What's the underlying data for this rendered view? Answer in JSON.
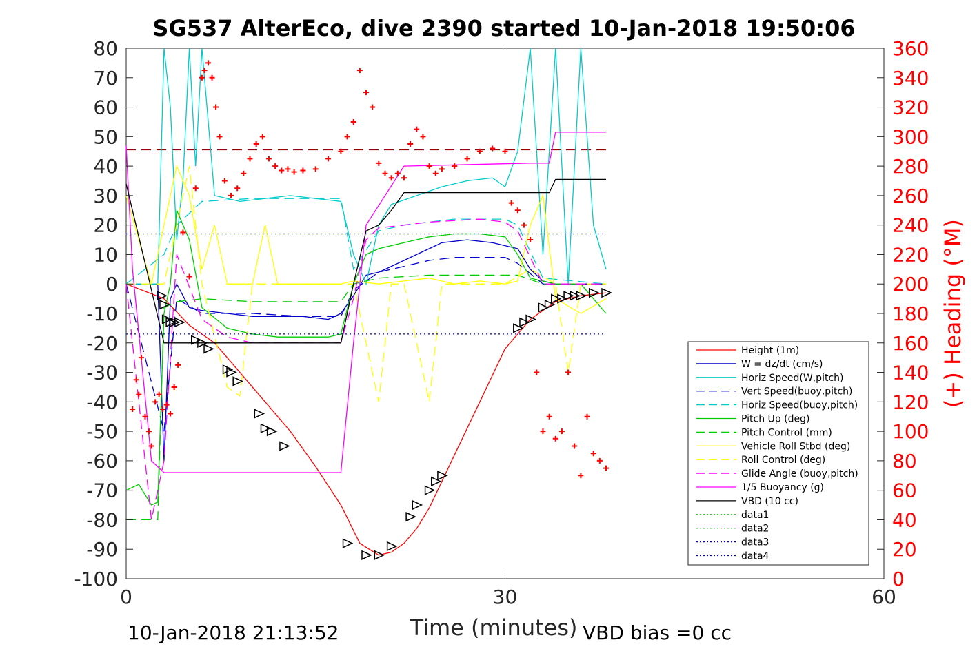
{
  "chart_data": {
    "type": "line",
    "title": "SG537 AlterEco, dive 2390 started 10-Jan-2018 19:50:06",
    "xlabel": "Time (minutes)",
    "ylabel": "",
    "ylabel_right": "(+) Heading (°M)",
    "xlim": [
      0,
      60
    ],
    "ylim": [
      -100,
      80
    ],
    "ylim_right": [
      0,
      360
    ],
    "xticks": [
      0,
      30,
      60
    ],
    "yticks": [
      -100,
      -90,
      -80,
      -70,
      -60,
      -50,
      -40,
      -30,
      -20,
      -10,
      0,
      10,
      20,
      30,
      40,
      50,
      60,
      70,
      80
    ],
    "yticks_right": [
      0,
      20,
      40,
      60,
      80,
      100,
      120,
      140,
      160,
      180,
      200,
      220,
      240,
      260,
      280,
      300,
      320,
      340,
      360
    ],
    "grid": "x-only",
    "legend_position": "lower-right",
    "footer_left": "10-Jan-2018 21:13:52",
    "footer_right": "VBD bias =0 cc",
    "series": [
      {
        "name": "Height (1m)",
        "color": "#ff0000",
        "style": "solid",
        "x": [
          0,
          3,
          5,
          7,
          9,
          11,
          13,
          15,
          17,
          18.5,
          20,
          21,
          22,
          23,
          24,
          25,
          26,
          28,
          30,
          32,
          34,
          36,
          38
        ],
        "y": [
          0,
          -5,
          -14,
          -20,
          -30,
          -40,
          -50,
          -62,
          -75,
          -88,
          -92,
          -91,
          -88,
          -83,
          -76,
          -67,
          -58,
          -40,
          -22,
          -12,
          -6,
          -4,
          -3
        ]
      },
      {
        "name": "W = dz/dt (cm/s)",
        "color": "#0000cc",
        "style": "solid",
        "x": [
          0,
          2.5,
          3,
          3.5,
          4,
          5,
          6,
          8,
          10,
          12,
          14,
          16,
          17,
          18,
          19,
          20,
          21,
          22,
          23,
          24,
          25,
          27,
          29,
          30,
          31,
          32,
          33,
          34,
          36,
          38
        ],
        "y": [
          0,
          0,
          -60,
          -5,
          0,
          -8,
          -9,
          -10,
          -11,
          -11,
          -11,
          -12,
          -10,
          -4,
          3,
          4,
          6,
          8,
          10,
          12,
          14,
          15,
          14,
          13,
          12,
          5,
          1,
          0,
          0,
          0
        ]
      },
      {
        "name": "Horiz Speed(W,pitch)",
        "color": "#00cccc",
        "style": "solid",
        "x": [
          0,
          2.5,
          3,
          3.5,
          4,
          4.5,
          5,
          5.5,
          6,
          7,
          9,
          11,
          13,
          15,
          17,
          18,
          19,
          20,
          21,
          23,
          25,
          27,
          29,
          30,
          31,
          32,
          33,
          34,
          35,
          36,
          37,
          38
        ],
        "y": [
          0,
          0,
          80,
          60,
          15,
          35,
          80,
          40,
          80,
          30,
          28,
          29,
          30,
          29,
          28,
          10,
          0,
          20,
          27,
          30,
          33,
          35,
          36,
          33,
          45,
          80,
          10,
          80,
          0,
          80,
          20,
          5
        ]
      },
      {
        "name": "Vert Speed(buoy,pitch)",
        "color": "#0000cc",
        "style": "dash",
        "x": [
          0,
          3,
          4,
          6,
          10,
          14,
          17,
          18,
          20,
          22,
          24,
          26,
          28,
          30,
          31,
          33,
          38
        ],
        "y": [
          0,
          -50,
          -5,
          -10,
          -10,
          -11,
          -11,
          -2,
          4,
          6,
          8,
          9,
          9,
          9,
          7,
          0,
          0
        ]
      },
      {
        "name": "Horiz Speed(buoy,pitch)",
        "color": "#00cccc",
        "style": "dash",
        "x": [
          0,
          3,
          4,
          6,
          10,
          14,
          17,
          18,
          20,
          22,
          24,
          26,
          28,
          30,
          31,
          33,
          38
        ],
        "y": [
          0,
          10,
          20,
          28,
          29,
          29,
          29,
          5,
          18,
          20,
          21,
          22,
          22,
          22,
          20,
          2,
          0
        ]
      },
      {
        "name": "Pitch Up (deg)",
        "color": "#00cc00",
        "style": "solid",
        "x": [
          0,
          1,
          2,
          2.5,
          3,
          3.5,
          4,
          5,
          6,
          8,
          10,
          12,
          14,
          16,
          17,
          18,
          19,
          20,
          22,
          24,
          26,
          28,
          30,
          31,
          32,
          34,
          36,
          38
        ],
        "y": [
          -70,
          -68,
          -75,
          -74,
          -10,
          0,
          25,
          15,
          -8,
          -15,
          -17,
          -18,
          -18,
          -18,
          -17,
          0,
          10,
          12,
          14,
          16,
          17,
          17,
          16,
          10,
          2,
          0,
          0,
          -10
        ]
      },
      {
        "name": "Pitch Control (mm)",
        "color": "#00cc00",
        "style": "dash",
        "x": [
          0,
          2.5,
          3,
          4,
          6,
          10,
          14,
          17,
          18,
          20,
          24,
          28,
          30,
          31,
          33,
          38
        ],
        "y": [
          -80,
          -80,
          -8,
          -6,
          -5,
          -6,
          -6,
          -6,
          0,
          2,
          3,
          3,
          3,
          3,
          0,
          0
        ]
      },
      {
        "name": "Vehicle Roll Stbd (deg)",
        "color": "#ffff00",
        "style": "solid",
        "x": [
          0,
          2,
          3,
          4,
          5,
          6,
          7,
          8,
          9,
          10,
          11,
          12,
          14,
          16,
          17,
          18,
          20,
          22,
          24,
          26,
          28,
          30,
          31,
          32,
          33,
          34,
          36,
          38
        ],
        "y": [
          30,
          0,
          20,
          40,
          30,
          5,
          20,
          0,
          0,
          0,
          20,
          0,
          0,
          0,
          0,
          1,
          0,
          1,
          2,
          0,
          1,
          0,
          1,
          20,
          30,
          -5,
          -10,
          -5
        ]
      },
      {
        "name": "Roll Control (deg)",
        "color": "#ffff00",
        "style": "dash",
        "x": [
          0,
          3,
          5,
          6,
          8,
          9,
          10,
          12,
          14,
          16,
          18,
          20,
          21,
          22,
          24,
          25,
          26,
          28,
          30,
          32,
          34,
          35,
          36,
          38
        ],
        "y": [
          0,
          0,
          40,
          0,
          -35,
          -38,
          0,
          0,
          0,
          0,
          0,
          -40,
          0,
          0,
          -40,
          0,
          0,
          0,
          0,
          5,
          0,
          -30,
          0,
          0
        ]
      },
      {
        "name": "Glide Angle (buoy,pitch)",
        "color": "#ff00ff",
        "style": "dash",
        "x": [
          0,
          2,
          2.5,
          3,
          4,
          6,
          8,
          10,
          14,
          17,
          18,
          19,
          20,
          22,
          24,
          28,
          30,
          31,
          33,
          38
        ],
        "y": [
          0,
          -80,
          -70,
          -60,
          10,
          -12,
          -18,
          -20,
          -20,
          -20,
          -5,
          15,
          19,
          20,
          21,
          22,
          21,
          18,
          0,
          0
        ]
      },
      {
        "name": "1/5 Buoyancy (g)",
        "color": "#ff00ff",
        "style": "solid",
        "x": [
          0,
          0.5,
          2,
          3,
          17,
          18,
          19,
          22,
          32,
          33.5,
          34,
          38
        ],
        "y": [
          47,
          5,
          -60,
          -64,
          -64,
          -20,
          20,
          40,
          41,
          41,
          51.5,
          51.5
        ]
      },
      {
        "name": "VBD (10 cc)",
        "color": "#000000",
        "style": "solid",
        "x": [
          0,
          3,
          17,
          18,
          19,
          20,
          21,
          22,
          32,
          33.5,
          34,
          38
        ],
        "y": [
          34,
          -20,
          -20,
          0,
          18,
          20,
          25,
          31,
          31,
          31,
          35.5,
          35.5
        ]
      },
      {
        "name": "data1",
        "color": "#00cc00",
        "style": "dot",
        "x": [],
        "y": []
      },
      {
        "name": "data2",
        "color": "#00cc00",
        "style": "dot",
        "x": [],
        "y": []
      },
      {
        "name": "data3",
        "color": "#0000cc",
        "style": "dot",
        "x": [
          0,
          38
        ],
        "y": [
          17,
          17
        ]
      },
      {
        "name": "data4",
        "color": "#0000cc",
        "style": "dot",
        "x": [
          0,
          38
        ],
        "y": [
          -17,
          -17
        ]
      }
    ],
    "heading_reference": {
      "color": "#990000",
      "style": "dash",
      "value": 291,
      "x": [
        0,
        38
      ]
    },
    "heading_points": {
      "color": "#ff0000",
      "marker": "+",
      "x": [
        0.5,
        0.8,
        1.0,
        1.2,
        1.5,
        1.8,
        2.0,
        2.3,
        2.6,
        2.9,
        3.2,
        3.5,
        3.8,
        4.1,
        4.5,
        5,
        5.5,
        6,
        6.2,
        6.5,
        6.8,
        7.1,
        7.4,
        7.8,
        8.3,
        8.8,
        9.3,
        9.8,
        10.3,
        10.8,
        11.3,
        11.8,
        12.3,
        12.8,
        13.3,
        14,
        15,
        16,
        17,
        17.5,
        18,
        18.5,
        19,
        19.5,
        20,
        20.5,
        21,
        21.5,
        22,
        22.5,
        23,
        23.5,
        24,
        24.5,
        25,
        26,
        27,
        28,
        29,
        30,
        30.5,
        31,
        31.5,
        32,
        32.5,
        33,
        33.5,
        34,
        34.5,
        35,
        35.5,
        36,
        36.5,
        37,
        37.5,
        38
      ],
      "y": [
        115,
        135,
        125,
        150,
        110,
        100,
        90,
        120,
        125,
        115,
        118,
        112,
        130,
        145,
        235,
        205,
        265,
        340,
        345,
        350,
        340,
        320,
        300,
        270,
        260,
        265,
        275,
        285,
        295,
        300,
        285,
        280,
        277,
        278,
        276,
        277,
        278,
        285,
        290,
        300,
        310,
        345,
        330,
        320,
        282,
        275,
        272,
        275,
        272,
        295,
        305,
        300,
        280,
        275,
        278,
        280,
        285,
        290,
        292,
        290,
        255,
        250,
        240,
        230,
        140,
        100,
        110,
        95,
        100,
        140,
        90,
        70,
        110,
        85,
        80,
        75
      ]
    },
    "glider_markers": {
      "color": "#000000",
      "marker": "triangle",
      "x": [
        2.8,
        3.0,
        3.2,
        3.5,
        3.8,
        4.2,
        5.5,
        6.0,
        6.5,
        8.0,
        8.3,
        8.8,
        10.5,
        11.0,
        11.5,
        12.5,
        17.5,
        19.0,
        20.0,
        21.0,
        22.5,
        23.0,
        24.0,
        24.5,
        25.0,
        31.0,
        31.5,
        32.0,
        33.0,
        33.5,
        34.0,
        34.5,
        35.0,
        35.5,
        36.0,
        37.0,
        38.0
      ],
      "y": [
        -4,
        -7,
        -12,
        -13,
        -13,
        -13,
        -19,
        -20,
        -22,
        -29,
        -30,
        -33,
        -44,
        -49,
        -50,
        -55,
        -88,
        -92,
        -92,
        -89,
        -79,
        -75,
        -70,
        -67,
        -65,
        -15,
        -13,
        -12,
        -8,
        -7,
        -5,
        -5,
        -4,
        -4,
        -4,
        -3,
        -3
      ]
    }
  }
}
